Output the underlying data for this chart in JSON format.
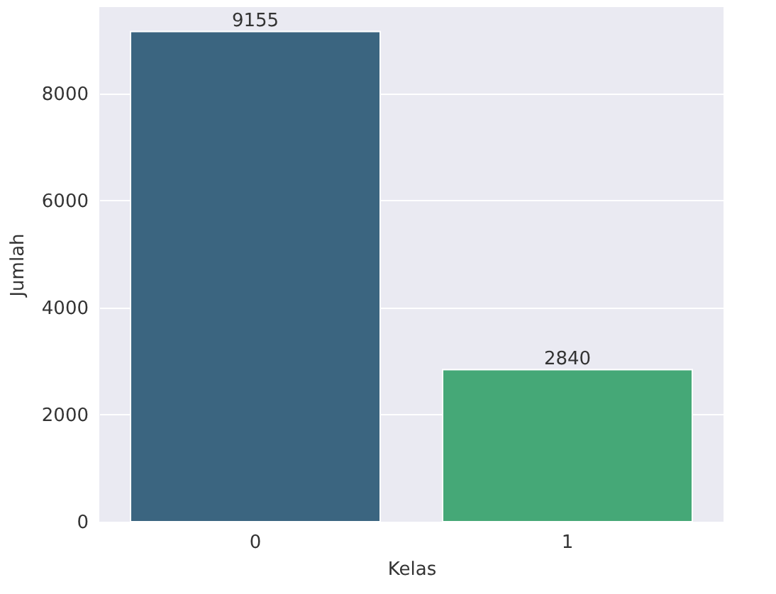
{
  "chart_data": {
    "type": "bar",
    "xlabel": "Kelas",
    "ylabel": "Jumlah",
    "categories": [
      "0",
      "1"
    ],
    "values": [
      9155,
      2840
    ],
    "colors": [
      "#3b6580",
      "#45a877"
    ],
    "ylim": [
      0,
      9613
    ],
    "yticks": [
      0,
      2000,
      4000,
      6000,
      8000
    ],
    "grid": "y",
    "data_labels": true
  }
}
